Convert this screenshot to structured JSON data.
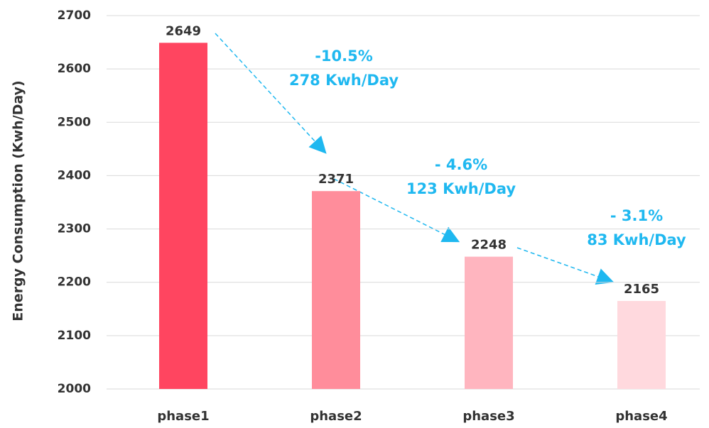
{
  "chart_data": {
    "type": "bar",
    "y_axis_label": "Energy Consumption (Kwh/Day)",
    "categories": [
      "phase1",
      "phase2",
      "phase3",
      "phase4"
    ],
    "values": [
      2649,
      2371,
      2248,
      2165
    ],
    "colors": [
      "#ff4560",
      "#ff8d9b",
      "#ffb5bf",
      "#ffd9de"
    ],
    "ylim": [
      2000,
      2700
    ],
    "yticks": [
      2000,
      2100,
      2200,
      2300,
      2400,
      2500,
      2600,
      2700
    ],
    "grid": true,
    "annotation_color": "#1fb8f0",
    "annotations": [
      [
        "-10.5%",
        "278 Kwh/Day"
      ],
      [
        "- 4.6%",
        "123 Kwh/Day"
      ],
      [
        "- 3.1%",
        "83 Kwh/Day"
      ]
    ]
  }
}
